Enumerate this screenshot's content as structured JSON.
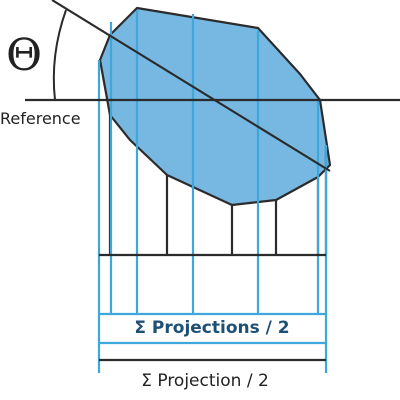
{
  "theta_label": "Θ",
  "reference_label": "Reference",
  "projections_half_label": "Σ Projections / 2",
  "projection_half_label": "Σ Projection / 2",
  "colors": {
    "shape_fill": "#76b8e2",
    "projection_line": "#3ea7dc",
    "outline": "#2b2b2b",
    "label_blue": "#1e4f75",
    "label_dark": "#222222"
  }
}
